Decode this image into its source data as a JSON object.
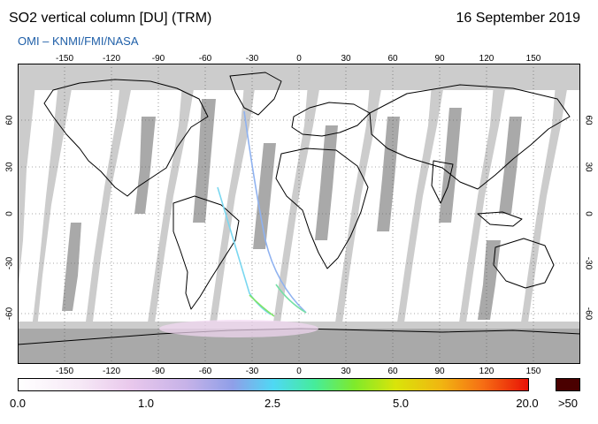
{
  "header": {
    "title": "SO2 vertical column [DU] (TRM)",
    "date": "16 September 2019",
    "source": "OMI  –  KNMI/FMI/NASA"
  },
  "map": {
    "lon_ticks": [
      "-150",
      "-120",
      "-90",
      "-60",
      "-30",
      "0",
      "30",
      "60",
      "90",
      "120",
      "150"
    ],
    "lat_ticks": [
      "60",
      "30",
      "0",
      "-30",
      "-60"
    ],
    "background_color": "#ffffff",
    "swath_gap_color": "#cccccc",
    "swath_shade_color": "#a9a9a9"
  },
  "colorbar": {
    "labels": [
      "0.0",
      "1.0",
      "2.5",
      "5.0",
      "20.0"
    ],
    "over_label": ">50",
    "over_color": "#4a0000"
  }
}
